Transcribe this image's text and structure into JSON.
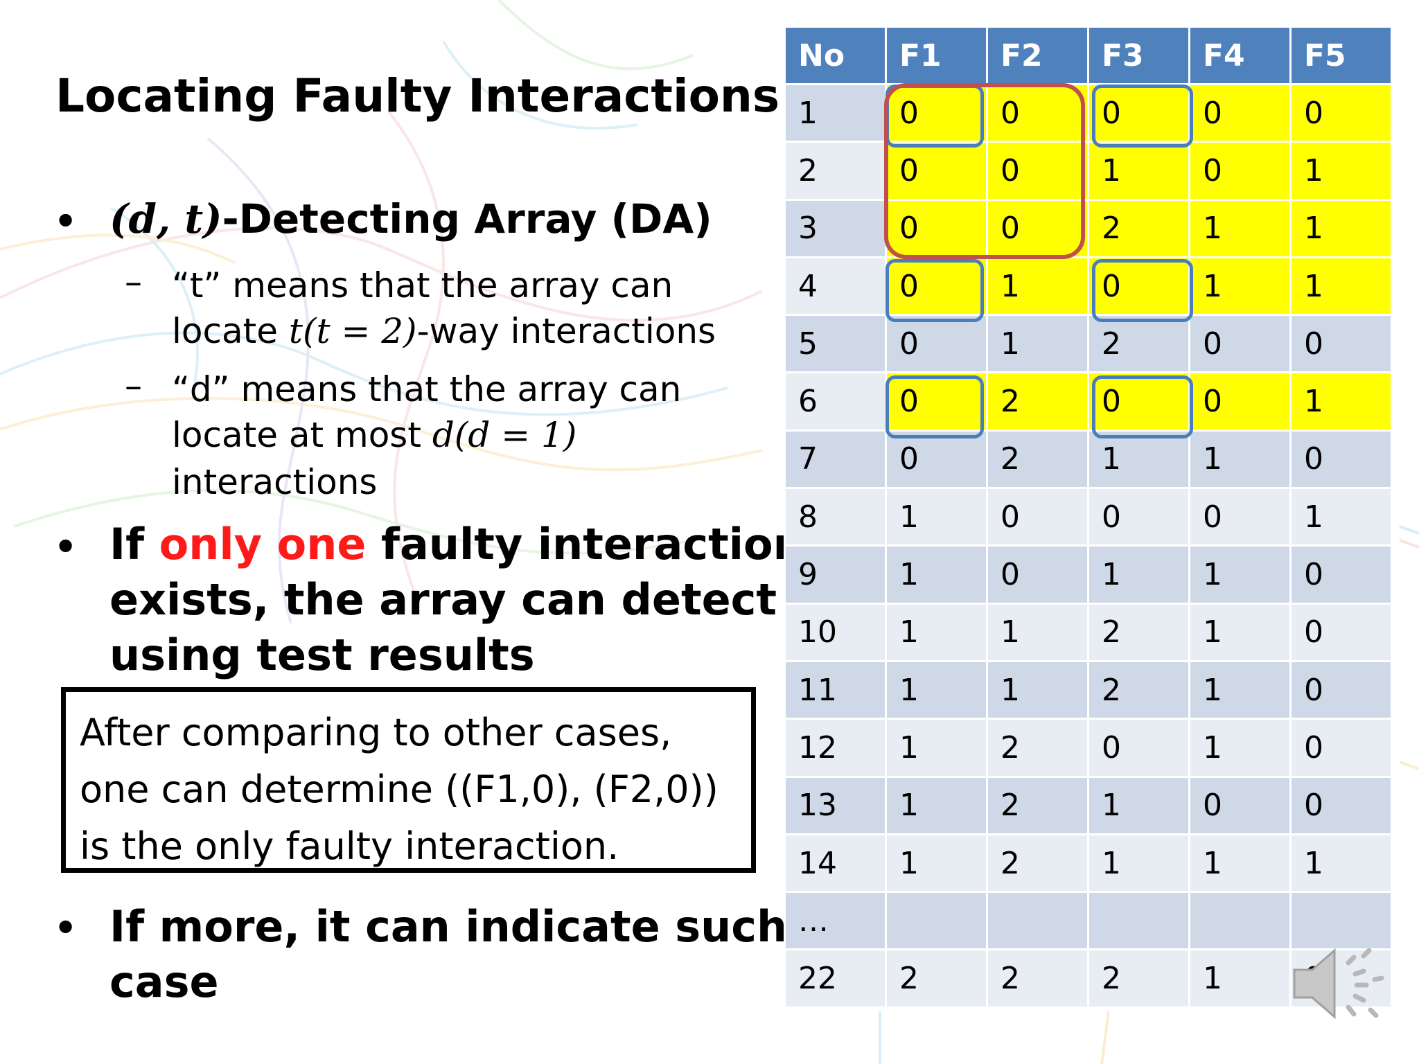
{
  "title": "Locating Faulty Interactions",
  "bullets": {
    "b1_math": "(d, t)",
    "b1_text": "-Detecting Array (DA)",
    "sub1_line1": "“t” means that the array can",
    "sub1_line2_a": "locate ",
    "sub1_line2_math": "t(t = 2)",
    "sub1_line2_b": "-way interactions",
    "sub2_line1": "“d” means that the array can",
    "sub2_line2_a": "locate at most ",
    "sub2_line2_math": "d(d = 1)",
    "sub2_line3": "interactions",
    "b2_pre": "If ",
    "b2_red": "only one",
    "b2_post": " faulty interaction",
    "b2_line2": "exists, the array can detect it",
    "b2_line3": "using test results",
    "b3_line1": "If more, it can indicate such",
    "b3_line2": "case"
  },
  "callout": {
    "line1": "After comparing to other cases,",
    "line2": "one can determine ((F1,0), (F2,0))",
    "line3": "is the only faulty interaction."
  },
  "table": {
    "headers": [
      "No",
      "F1",
      "F2",
      "F3",
      "F4",
      "F5"
    ],
    "rows": [
      [
        "1",
        "0",
        "0",
        "0",
        "0",
        "0"
      ],
      [
        "2",
        "0",
        "0",
        "1",
        "0",
        "1"
      ],
      [
        "3",
        "0",
        "0",
        "2",
        "1",
        "1"
      ],
      [
        "4",
        "0",
        "1",
        "0",
        "1",
        "1"
      ],
      [
        "5",
        "0",
        "1",
        "2",
        "0",
        "0"
      ],
      [
        "6",
        "0",
        "2",
        "0",
        "0",
        "1"
      ],
      [
        "7",
        "0",
        "2",
        "1",
        "1",
        "0"
      ],
      [
        "8",
        "1",
        "0",
        "0",
        "0",
        "1"
      ],
      [
        "9",
        "1",
        "0",
        "1",
        "1",
        "0"
      ],
      [
        "10",
        "1",
        "1",
        "2",
        "1",
        "0"
      ],
      [
        "11",
        "1",
        "1",
        "2",
        "1",
        "0"
      ],
      [
        "12",
        "1",
        "2",
        "0",
        "1",
        "0"
      ],
      [
        "13",
        "1",
        "2",
        "1",
        "0",
        "0"
      ],
      [
        "14",
        "1",
        "2",
        "1",
        "1",
        "1"
      ],
      [
        "…",
        "",
        "",
        "",
        "",
        ""
      ],
      [
        "22",
        "2",
        "2",
        "2",
        "1",
        "0"
      ]
    ],
    "highlighted_rows": [
      1,
      2,
      3,
      4,
      6
    ]
  },
  "icons": {
    "speaker": "speaker-icon"
  },
  "colors": {
    "header": "#4f81bd",
    "highlight": "#ffff00",
    "red_text": "#ff1a1a",
    "blue_box": "#4a7ebb",
    "red_box": "#c0504d"
  }
}
